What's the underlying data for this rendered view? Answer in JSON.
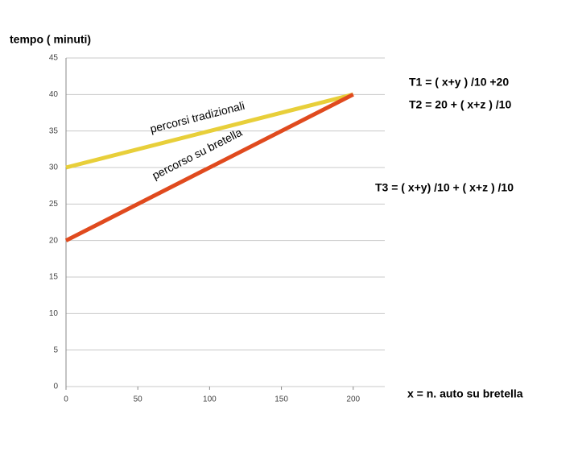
{
  "chart_data": {
    "type": "line",
    "title": "tempo ( minuti)",
    "x_label": "x = n. auto su bretella",
    "annotations": [
      "T1 = ( x+y ) /10  +20",
      "T2 = 20 + ( x+z ) /10",
      "T3 = ( x+y) /10 + ( x+z ) /10"
    ],
    "x": [
      0,
      200
    ],
    "series": [
      {
        "name": "percorsi tradizionali",
        "color": "#e8cf3a",
        "values": [
          30,
          40
        ]
      },
      {
        "name": "percorso su bretella",
        "color": "#e04a1e",
        "values": [
          20,
          40
        ]
      }
    ],
    "xlim": [
      0,
      222
    ],
    "xticks": [
      0,
      50,
      100,
      150,
      200
    ],
    "ylim": [
      0,
      45
    ],
    "yticks": [
      0,
      5,
      10,
      15,
      20,
      25,
      30,
      35,
      40,
      45
    ],
    "grid": true
  }
}
